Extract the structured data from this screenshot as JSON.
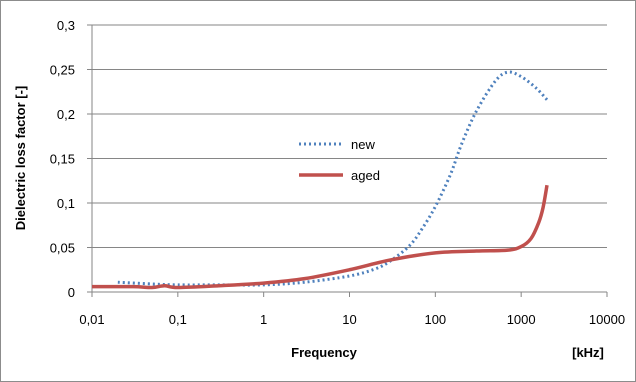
{
  "chart_data": {
    "type": "line",
    "xlabel": "Frequency",
    "xunit": "[kHz]",
    "ylabel": "Dielectric loss factor [-]",
    "xscale": "log",
    "xlim": [
      0.01,
      10000
    ],
    "ylim": [
      0,
      0.3
    ],
    "xticks": [
      0.01,
      0.1,
      1,
      10,
      100,
      1000,
      10000
    ],
    "xtick_labels": [
      "0,01",
      "0,1",
      "1",
      "10",
      "100",
      "1000",
      "10000"
    ],
    "yticks": [
      0,
      0.05,
      0.1,
      0.15,
      0.2,
      0.25,
      0.3
    ],
    "ytick_labels": [
      "0",
      "0,05",
      "0,1",
      "0,15",
      "0,2",
      "0,25",
      "0,3"
    ],
    "grid": "horizontal",
    "legend": "center",
    "series": [
      {
        "name": "new",
        "color": "#4f81bd",
        "style": "dotted",
        "x": [
          0.02,
          0.05,
          0.1,
          0.3,
          1,
          3,
          10,
          20,
          30,
          50,
          70,
          100,
          150,
          200,
          300,
          500,
          700,
          1000,
          1500,
          2000
        ],
        "y": [
          0.011,
          0.009,
          0.008,
          0.008,
          0.008,
          0.011,
          0.018,
          0.026,
          0.035,
          0.052,
          0.071,
          0.096,
          0.132,
          0.165,
          0.203,
          0.237,
          0.247,
          0.242,
          0.229,
          0.216
        ]
      },
      {
        "name": "aged",
        "color": "#c0504d",
        "style": "solid",
        "x": [
          0.01,
          0.03,
          0.05,
          0.07,
          0.1,
          0.3,
          1,
          3,
          10,
          30,
          100,
          300,
          700,
          1000,
          1300,
          1600,
          1800,
          2000
        ],
        "y": [
          0.006,
          0.006,
          0.005,
          0.007,
          0.005,
          0.007,
          0.01,
          0.015,
          0.025,
          0.036,
          0.044,
          0.046,
          0.047,
          0.051,
          0.06,
          0.078,
          0.095,
          0.12
        ]
      }
    ]
  }
}
